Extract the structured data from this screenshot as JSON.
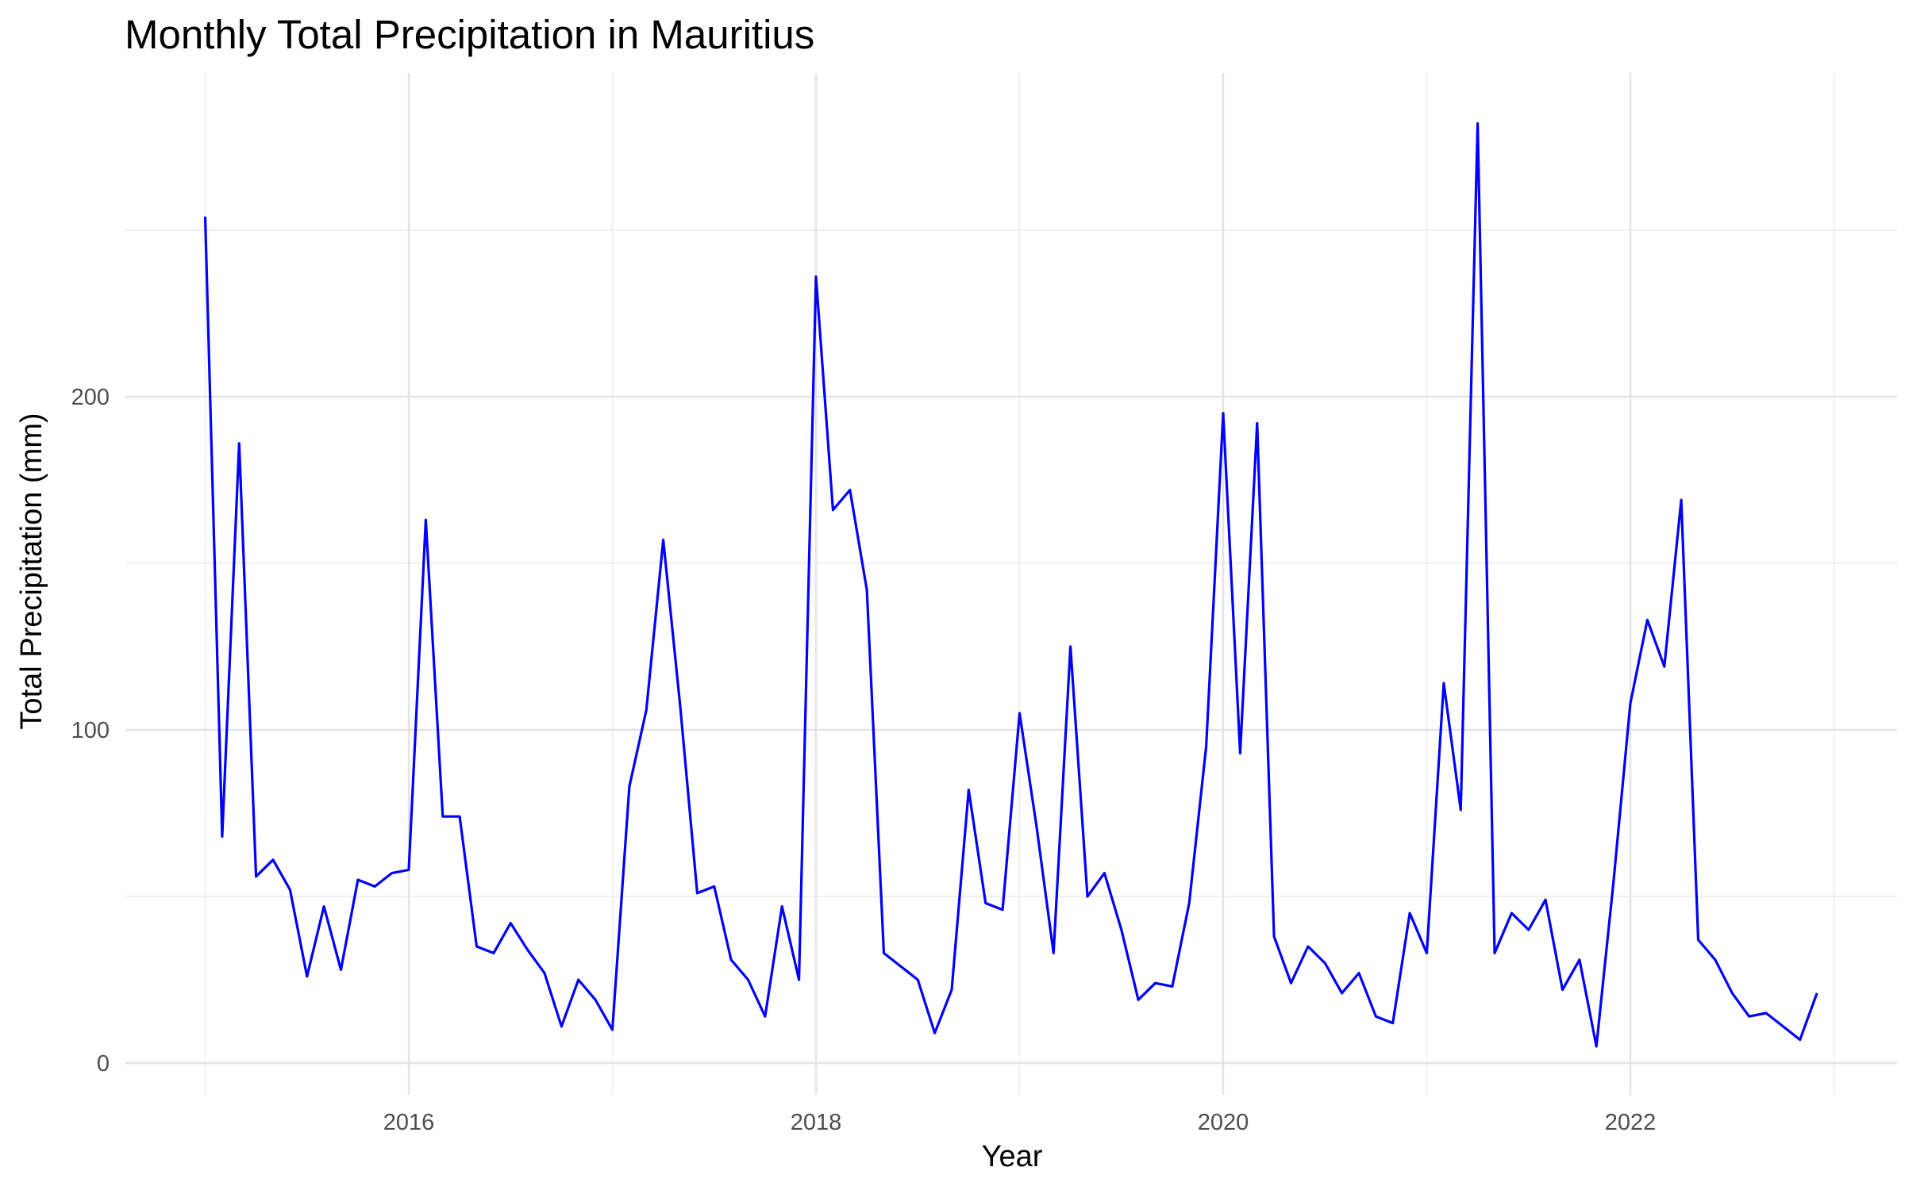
{
  "chart_data": {
    "type": "line",
    "title": "Monthly Total Precipitation in Mauritius",
    "xlabel": "Year",
    "ylabel": "Total Precipitation (mm)",
    "x_tick_labels": [
      "2016",
      "2018",
      "2020",
      "2022"
    ],
    "y_tick_labels": [
      "0",
      "100",
      "200"
    ],
    "xlim": [
      2014.8,
      2023.3
    ],
    "ylim": [
      -10,
      295
    ],
    "grid": true,
    "legend": "none",
    "line_color": "#0000ff",
    "series": [
      {
        "x": [
          "2015-01",
          "2015-02",
          "2015-03",
          "2015-04",
          "2015-05",
          "2015-06",
          "2015-07",
          "2015-08",
          "2015-09",
          "2015-10",
          "2015-11",
          "2015-12",
          "2016-01",
          "2016-02",
          "2016-03",
          "2016-04",
          "2016-05",
          "2016-06",
          "2016-07",
          "2016-08",
          "2016-09",
          "2016-10",
          "2016-11",
          "2016-12",
          "2017-01",
          "2017-02",
          "2017-03",
          "2017-04",
          "2017-05",
          "2017-06",
          "2017-07",
          "2017-08",
          "2017-09",
          "2017-10",
          "2017-11",
          "2017-12",
          "2018-01",
          "2018-02",
          "2018-03",
          "2018-04",
          "2018-05",
          "2018-06",
          "2018-07",
          "2018-08",
          "2018-09",
          "2018-10",
          "2018-11",
          "2018-12",
          "2019-01",
          "2019-02",
          "2019-03",
          "2019-04",
          "2019-05",
          "2019-06",
          "2019-07",
          "2019-08",
          "2019-09",
          "2019-10",
          "2019-11",
          "2019-12",
          "2020-01",
          "2020-02",
          "2020-03",
          "2020-04",
          "2020-05",
          "2020-06",
          "2020-07",
          "2020-08",
          "2020-09",
          "2020-10",
          "2020-11",
          "2020-12",
          "2021-01",
          "2021-02",
          "2021-03",
          "2021-04",
          "2021-05",
          "2021-06",
          "2021-07",
          "2021-08",
          "2021-09",
          "2021-10",
          "2021-11",
          "2021-12",
          "2022-01",
          "2022-02",
          "2022-03",
          "2022-04",
          "2022-05",
          "2022-06",
          "2022-07",
          "2022-08",
          "2022-09",
          "2022-10",
          "2022-11",
          "2022-12"
        ],
        "values": [
          254,
          68,
          186,
          56,
          61,
          52,
          26,
          47,
          28,
          55,
          53,
          57,
          58,
          163,
          74,
          74,
          35,
          33,
          42,
          34,
          27,
          11,
          25,
          19,
          10,
          83,
          106,
          157,
          107,
          51,
          53,
          31,
          25,
          14,
          47,
          25,
          236,
          166,
          172,
          142,
          33,
          29,
          25,
          9,
          22,
          82,
          48,
          46,
          105,
          71,
          33,
          125,
          50,
          57,
          40,
          19,
          24,
          23,
          48,
          95,
          195,
          93,
          192,
          38,
          24,
          35,
          30,
          21,
          27,
          14,
          12,
          45,
          33,
          114,
          76,
          282,
          33,
          45,
          40,
          49,
          22,
          31,
          5,
          54,
          108,
          133,
          119,
          169,
          37,
          31,
          21,
          14,
          15,
          11,
          7,
          21
        ]
      }
    ]
  }
}
